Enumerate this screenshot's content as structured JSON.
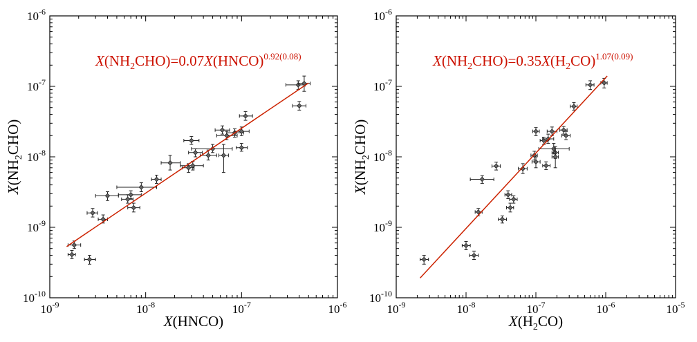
{
  "chart_data": [
    {
      "type": "scatter",
      "xscale": "log",
      "yscale": "log",
      "xlim": [
        1e-09,
        1e-06
      ],
      "ylim": [
        1e-10,
        1e-06
      ],
      "xticks": [
        {
          "exp": "-9",
          "value": 1e-09
        },
        {
          "exp": "-8",
          "value": 1e-08
        },
        {
          "exp": "-7",
          "value": 1e-07
        },
        {
          "exp": "-6",
          "value": 1e-06
        }
      ],
      "yticks": [
        {
          "exp": "-10",
          "value": 1e-10
        },
        {
          "exp": "-9",
          "value": 1e-09
        },
        {
          "exp": "-8",
          "value": 1e-08
        },
        {
          "exp": "-7",
          "value": 1e-07
        },
        {
          "exp": "-6",
          "value": 1e-06
        }
      ],
      "xlabel": {
        "var": "X",
        "open": "(",
        "species": "HNCO",
        "sub": "",
        "rest": "",
        "close": ")"
      },
      "ylabel": {
        "var": "X",
        "open": "(",
        "species": "NH",
        "sub": "2",
        "rest": "CHO",
        "close": ")"
      },
      "fit_text": {
        "lhs_var": "X",
        "lhs_open": "(",
        "lhs_sp": "NH",
        "lhs_sub": "2",
        "lhs_rest": "CHO",
        "lhs_close": ")",
        "coef": "=0.07",
        "rhs_var": "X",
        "rhs_open": "(",
        "rhs_sp": "HNCO",
        "rhs_sub": "",
        "rhs_rest": "",
        "rhs_close": ")",
        "exponent": "0.92(0.08)"
      },
      "fit": {
        "coefficient": 0.07,
        "slope": 0.92,
        "x_range": [
          1.5e-09,
          5e-07
        ]
      },
      "colors": {
        "fit_line": "#cc2200",
        "fit_text": "#cc1100",
        "points": "#222222"
      },
      "points": [
        {
          "x": 1.7e-09,
          "y": 4.1e-10,
          "xerr": [
            1.55e-09,
            1.85e-09
          ],
          "yerr": [
            3.6e-10,
            4.7e-10
          ]
        },
        {
          "x": 1.8e-09,
          "y": 5.6e-10,
          "xerr": [
            1.55e-09,
            2.1e-09
          ],
          "yerr": [
            5e-10,
            6.4e-10
          ]
        },
        {
          "x": 2.6e-09,
          "y": 3.5e-10,
          "xerr": [
            2.3e-09,
            3e-09
          ],
          "yerr": [
            3e-10,
            4e-10
          ]
        },
        {
          "x": 2.8e-09,
          "y": 1.6e-09,
          "xerr": [
            2.45e-09,
            3.15e-09
          ],
          "yerr": [
            1.4e-09,
            1.85e-09
          ]
        },
        {
          "x": 3.6e-09,
          "y": 1.3e-09,
          "xerr": [
            3.2e-09,
            4e-09
          ],
          "yerr": [
            1.15e-09,
            1.5e-09
          ]
        },
        {
          "x": 4e-09,
          "y": 2.8e-09,
          "xerr": [
            3e-09,
            5.2e-09
          ],
          "yerr": [
            2.4e-09,
            3.2e-09
          ]
        },
        {
          "x": 6.5e-09,
          "y": 2.5e-09,
          "xerr": [
            5.6e-09,
            7.4e-09
          ],
          "yerr": [
            2.2e-09,
            2.9e-09
          ]
        },
        {
          "x": 7e-09,
          "y": 2.9e-09,
          "xerr": [
            5.2e-09,
            9e-09
          ],
          "yerr": [
            2.55e-09,
            3.3e-09
          ]
        },
        {
          "x": 7.5e-09,
          "y": 1.9e-09,
          "xerr": [
            6.5e-09,
            8.7e-09
          ],
          "yerr": [
            1.65e-09,
            2.2e-09
          ]
        },
        {
          "x": 9e-09,
          "y": 3.7e-09,
          "xerr": [
            5e-09,
            1.3e-08
          ],
          "yerr": [
            3.2e-09,
            4.3e-09
          ]
        },
        {
          "x": 1.3e-08,
          "y": 4.8e-09,
          "xerr": [
            1.15e-08,
            1.45e-08
          ],
          "yerr": [
            4.2e-09,
            5.5e-09
          ]
        },
        {
          "x": 1.8e-08,
          "y": 8.2e-09,
          "xerr": [
            1.45e-08,
            2.3e-08
          ],
          "yerr": [
            6.5e-09,
            1.05e-08
          ]
        },
        {
          "x": 2.8e-08,
          "y": 7e-09,
          "xerr": [
            2.4e-08,
            3.2e-08
          ],
          "yerr": [
            6e-09,
            8e-09
          ]
        },
        {
          "x": 3e-08,
          "y": 1.7e-08,
          "xerr": [
            2.5e-08,
            3.6e-08
          ],
          "yerr": [
            1.5e-08,
            1.95e-08
          ]
        },
        {
          "x": 3.1e-08,
          "y": 7.5e-09,
          "xerr": [
            2.3e-08,
            4e-08
          ],
          "yerr": [
            6.5e-09,
            8.6e-09
          ]
        },
        {
          "x": 3.3e-08,
          "y": 1.15e-08,
          "xerr": [
            2.8e-08,
            3.9e-08
          ],
          "yerr": [
            1e-08,
            1.3e-08
          ]
        },
        {
          "x": 4.5e-08,
          "y": 1.05e-08,
          "xerr": [
            3.7e-08,
            5.5e-08
          ],
          "yerr": [
            9e-09,
            1.25e-08
          ]
        },
        {
          "x": 5e-08,
          "y": 1.3e-08,
          "xerr": [
            3e-08,
            8e-08
          ],
          "yerr": [
            1.15e-08,
            1.5e-08
          ]
        },
        {
          "x": 6.3e-08,
          "y": 2.4e-08,
          "xerr": [
            5.3e-08,
            7.5e-08
          ],
          "yerr": [
            2.1e-08,
            2.75e-08
          ]
        },
        {
          "x": 6.5e-08,
          "y": 1.05e-08,
          "xerr": [
            5.8e-08,
            7.3e-08
          ],
          "yerr": [
            6e-09,
            1.5e-08
          ]
        },
        {
          "x": 7e-08,
          "y": 2e-08,
          "xerr": [
            5.5e-08,
            9e-08
          ],
          "yerr": [
            1.75e-08,
            2.3e-08
          ]
        },
        {
          "x": 8.5e-08,
          "y": 2.2e-08,
          "xerr": [
            7e-08,
            1.05e-07
          ],
          "yerr": [
            1.9e-08,
            2.5e-08
          ]
        },
        {
          "x": 1e-07,
          "y": 2.3e-08,
          "xerr": [
            8.5e-08,
            1.2e-07
          ],
          "yerr": [
            2e-08,
            2.65e-08
          ]
        },
        {
          "x": 1e-07,
          "y": 1.35e-08,
          "xerr": [
            8.8e-08,
            1.15e-07
          ],
          "yerr": [
            1.2e-08,
            1.55e-08
          ]
        },
        {
          "x": 1.1e-07,
          "y": 3.8e-08,
          "xerr": [
            9.5e-08,
            1.3e-07
          ],
          "yerr": [
            3.3e-08,
            4.4e-08
          ]
        },
        {
          "x": 3.9e-07,
          "y": 1.05e-07,
          "xerr": [
            2.9e-07,
            4.6e-07
          ],
          "yerr": [
            9e-08,
            1.2e-07
          ]
        },
        {
          "x": 4e-07,
          "y": 5.3e-08,
          "xerr": [
            3.4e-07,
            4.7e-07
          ],
          "yerr": [
            4.6e-08,
            6.1e-08
          ]
        },
        {
          "x": 4.5e-07,
          "y": 1.1e-07,
          "xerr": [
            3.9e-07,
            5.2e-07
          ],
          "yerr": [
            8.5e-08,
            1.4e-07
          ]
        }
      ]
    },
    {
      "type": "scatter",
      "xscale": "log",
      "yscale": "log",
      "xlim": [
        1e-09,
        1e-05
      ],
      "ylim": [
        1e-10,
        1e-06
      ],
      "xticks": [
        {
          "exp": "-9",
          "value": 1e-09
        },
        {
          "exp": "-8",
          "value": 1e-08
        },
        {
          "exp": "-7",
          "value": 1e-07
        },
        {
          "exp": "-6",
          "value": 1e-06
        },
        {
          "exp": "-5",
          "value": 1e-05
        }
      ],
      "yticks": [
        {
          "exp": "-10",
          "value": 1e-10
        },
        {
          "exp": "-9",
          "value": 1e-09
        },
        {
          "exp": "-8",
          "value": 1e-08
        },
        {
          "exp": "-7",
          "value": 1e-07
        },
        {
          "exp": "-6",
          "value": 1e-06
        }
      ],
      "xlabel": {
        "var": "X",
        "open": "(",
        "species": "H",
        "sub": "2",
        "rest": "CO",
        "close": ")"
      },
      "ylabel": {
        "var": "X",
        "open": "(",
        "species": "NH",
        "sub": "2",
        "rest": "CHO",
        "close": ")"
      },
      "fit_text": {
        "lhs_var": "X",
        "lhs_open": "(",
        "lhs_sp": "NH",
        "lhs_sub": "2",
        "lhs_rest": "CHO",
        "lhs_close": ")",
        "coef": "=0.35",
        "rhs_var": "X",
        "rhs_open": "(",
        "rhs_sp": "H",
        "rhs_sub": "2",
        "rhs_rest": "CO",
        "rhs_close": ")",
        "exponent": "1.07(0.09)"
      },
      "fit": {
        "coefficient": 0.35,
        "slope": 1.07,
        "x_range": [
          2.2e-09,
          1.05e-06
        ]
      },
      "colors": {
        "fit_line": "#cc2200",
        "fit_text": "#cc1100",
        "points": "#222222"
      },
      "points": [
        {
          "x": 2.5e-09,
          "y": 3.5e-10,
          "xerr": [
            2.2e-09,
            2.9e-09
          ],
          "yerr": [
            3e-10,
            4e-10
          ]
        },
        {
          "x": 1e-08,
          "y": 5.5e-10,
          "xerr": [
            8.8e-09,
            1.15e-08
          ],
          "yerr": [
            4.8e-10,
            6.3e-10
          ]
        },
        {
          "x": 1.3e-08,
          "y": 4e-10,
          "xerr": [
            1.12e-08,
            1.5e-08
          ],
          "yerr": [
            3.5e-10,
            4.6e-10
          ]
        },
        {
          "x": 1.5e-08,
          "y": 1.65e-09,
          "xerr": [
            1.35e-08,
            1.7e-08
          ],
          "yerr": [
            1.45e-09,
            1.85e-09
          ]
        },
        {
          "x": 1.7e-08,
          "y": 4.8e-09,
          "xerr": [
            1.15e-08,
            2.5e-08
          ],
          "yerr": [
            4.2e-09,
            5.4e-09
          ]
        },
        {
          "x": 2.7e-08,
          "y": 7.4e-09,
          "xerr": [
            2.35e-08,
            3.1e-08
          ],
          "yerr": [
            6.5e-09,
            8.4e-09
          ]
        },
        {
          "x": 3.3e-08,
          "y": 1.3e-09,
          "xerr": [
            2.9e-08,
            3.8e-08
          ],
          "yerr": [
            1.15e-09,
            1.45e-09
          ]
        },
        {
          "x": 4e-08,
          "y": 2.9e-09,
          "xerr": [
            3.6e-08,
            4.5e-08
          ],
          "yerr": [
            2.55e-09,
            3.3e-09
          ]
        },
        {
          "x": 4.3e-08,
          "y": 1.9e-09,
          "xerr": [
            3.8e-08,
            4.8e-08
          ],
          "yerr": [
            1.65e-09,
            2.2e-09
          ]
        },
        {
          "x": 4.8e-08,
          "y": 2.5e-09,
          "xerr": [
            4.2e-08,
            5.4e-08
          ],
          "yerr": [
            2.2e-09,
            2.8e-09
          ]
        },
        {
          "x": 6.5e-08,
          "y": 6.8e-09,
          "xerr": [
            5.6e-08,
            7.5e-08
          ],
          "yerr": [
            5.8e-09,
            8e-09
          ]
        },
        {
          "x": 9.5e-08,
          "y": 1.05e-08,
          "xerr": [
            8.5e-08,
            1.05e-07
          ],
          "yerr": [
            9e-09,
            1.2e-08
          ]
        },
        {
          "x": 1e-07,
          "y": 2.3e-08,
          "xerr": [
            9e-08,
            1.12e-07
          ],
          "yerr": [
            2e-08,
            2.6e-08
          ]
        },
        {
          "x": 1e-07,
          "y": 8.5e-09,
          "xerr": [
            8.8e-08,
            1.15e-07
          ],
          "yerr": [
            7e-09,
            1e-08
          ]
        },
        {
          "x": 1.3e-07,
          "y": 1.7e-08,
          "xerr": [
            1.15e-07,
            1.45e-07
          ],
          "yerr": [
            1.5e-08,
            1.9e-08
          ]
        },
        {
          "x": 1.4e-07,
          "y": 7.5e-09,
          "xerr": [
            1.25e-07,
            1.6e-07
          ],
          "yerr": [
            6.6e-09,
            8.5e-09
          ]
        },
        {
          "x": 1.5e-07,
          "y": 1.8e-08,
          "xerr": [
            1.25e-07,
            1.8e-07
          ],
          "yerr": [
            1.55e-08,
            2.1e-08
          ]
        },
        {
          "x": 1.7e-07,
          "y": 2.3e-08,
          "xerr": [
            1.45e-07,
            2e-07
          ],
          "yerr": [
            2e-08,
            2.65e-08
          ]
        },
        {
          "x": 1.8e-07,
          "y": 1.3e-08,
          "xerr": [
            1.1e-07,
            3e-07
          ],
          "yerr": [
            1.1e-08,
            1.55e-08
          ]
        },
        {
          "x": 1.9e-07,
          "y": 1.15e-08,
          "xerr": [
            1.7e-07,
            2.1e-07
          ],
          "yerr": [
            9.5e-09,
            1.4e-08
          ]
        },
        {
          "x": 1.9e-07,
          "y": 1e-08,
          "xerr": [
            1.7e-07,
            2.1e-07
          ],
          "yerr": [
            7e-09,
            1.3e-08
          ]
        },
        {
          "x": 2.5e-07,
          "y": 2.4e-08,
          "xerr": [
            2.2e-07,
            2.8e-07
          ],
          "yerr": [
            2.1e-08,
            2.7e-08
          ]
        },
        {
          "x": 2.7e-07,
          "y": 2e-08,
          "xerr": [
            2.35e-07,
            3.1e-07
          ],
          "yerr": [
            1.75e-08,
            2.3e-08
          ]
        },
        {
          "x": 3.5e-07,
          "y": 5.2e-08,
          "xerr": [
            3.1e-07,
            3.9e-07
          ],
          "yerr": [
            4.6e-08,
            5.9e-08
          ]
        },
        {
          "x": 6e-07,
          "y": 1.05e-07,
          "xerr": [
            5.2e-07,
            6.8e-07
          ],
          "yerr": [
            9e-08,
            1.2e-07
          ]
        },
        {
          "x": 9.5e-07,
          "y": 1.12e-07,
          "xerr": [
            8.5e-07,
            1.05e-06
          ],
          "yerr": [
            9.5e-08,
            1.3e-07
          ]
        }
      ]
    }
  ]
}
